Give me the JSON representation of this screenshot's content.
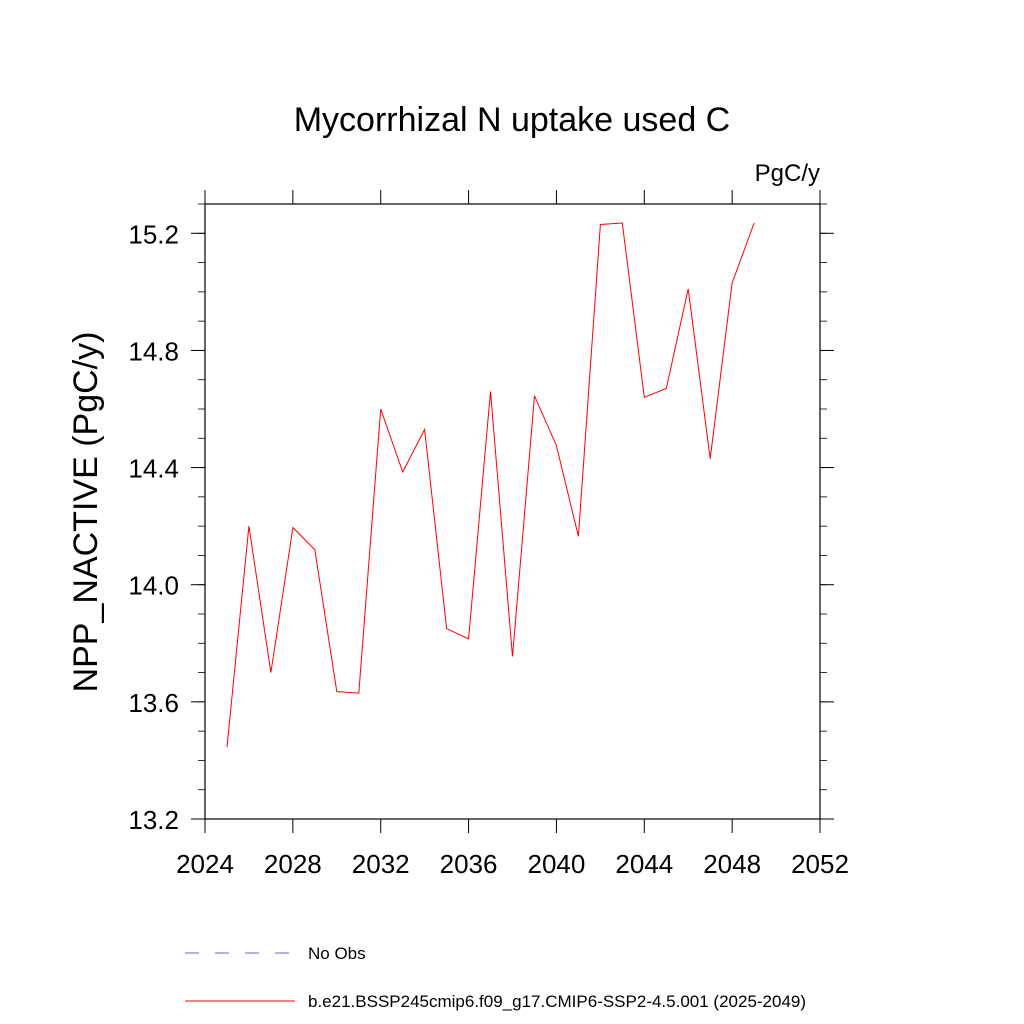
{
  "chart_data": {
    "type": "line",
    "title": "Mycorrhizal N uptake used C",
    "units_label": "PgC/y",
    "xlabel": "",
    "ylabel": "NPP_NACTIVE  (PgC/y)",
    "xlim": [
      2024,
      2052
    ],
    "ylim": [
      13.2,
      15.3
    ],
    "x_ticks": [
      2024,
      2028,
      2032,
      2036,
      2040,
      2044,
      2048,
      2052
    ],
    "y_ticks": [
      13.2,
      13.6,
      14.0,
      14.4,
      14.8,
      15.2
    ],
    "x_tick_labels": [
      "2024",
      "2028",
      "2032",
      "2036",
      "2040",
      "2044",
      "2048",
      "2052"
    ],
    "y_tick_labels": [
      "13.2",
      "13.6",
      "14.0",
      "14.4",
      "14.8",
      "15.2"
    ],
    "series": [
      {
        "name": "b.e21.BSSP245cmip6.f09_g17.CMIP6-SSP2-4.5.001 (2025-2049)",
        "color": "#ff0000",
        "x": [
          2025,
          2026,
          2027,
          2028,
          2029,
          2030,
          2031,
          2032,
          2033,
          2034,
          2035,
          2036,
          2037,
          2038,
          2039,
          2040,
          2041,
          2042,
          2043,
          2044,
          2045,
          2046,
          2047,
          2048,
          2049
        ],
        "values": [
          13.445,
          14.2,
          13.7,
          14.195,
          14.12,
          13.635,
          13.63,
          14.6,
          14.385,
          14.53,
          13.85,
          13.815,
          14.66,
          13.755,
          14.645,
          14.475,
          14.165,
          15.23,
          15.235,
          14.64,
          14.67,
          15.01,
          14.43,
          15.03,
          15.235
        ]
      }
    ],
    "legend": [
      {
        "label": "No Obs",
        "color": "#6666cc",
        "style": "dashed"
      },
      {
        "label": "b.e21.BSSP245cmip6.f09_g17.CMIP6-SSP2-4.5.001 (2025-2049)",
        "color": "#ff0000",
        "style": "solid"
      }
    ]
  }
}
